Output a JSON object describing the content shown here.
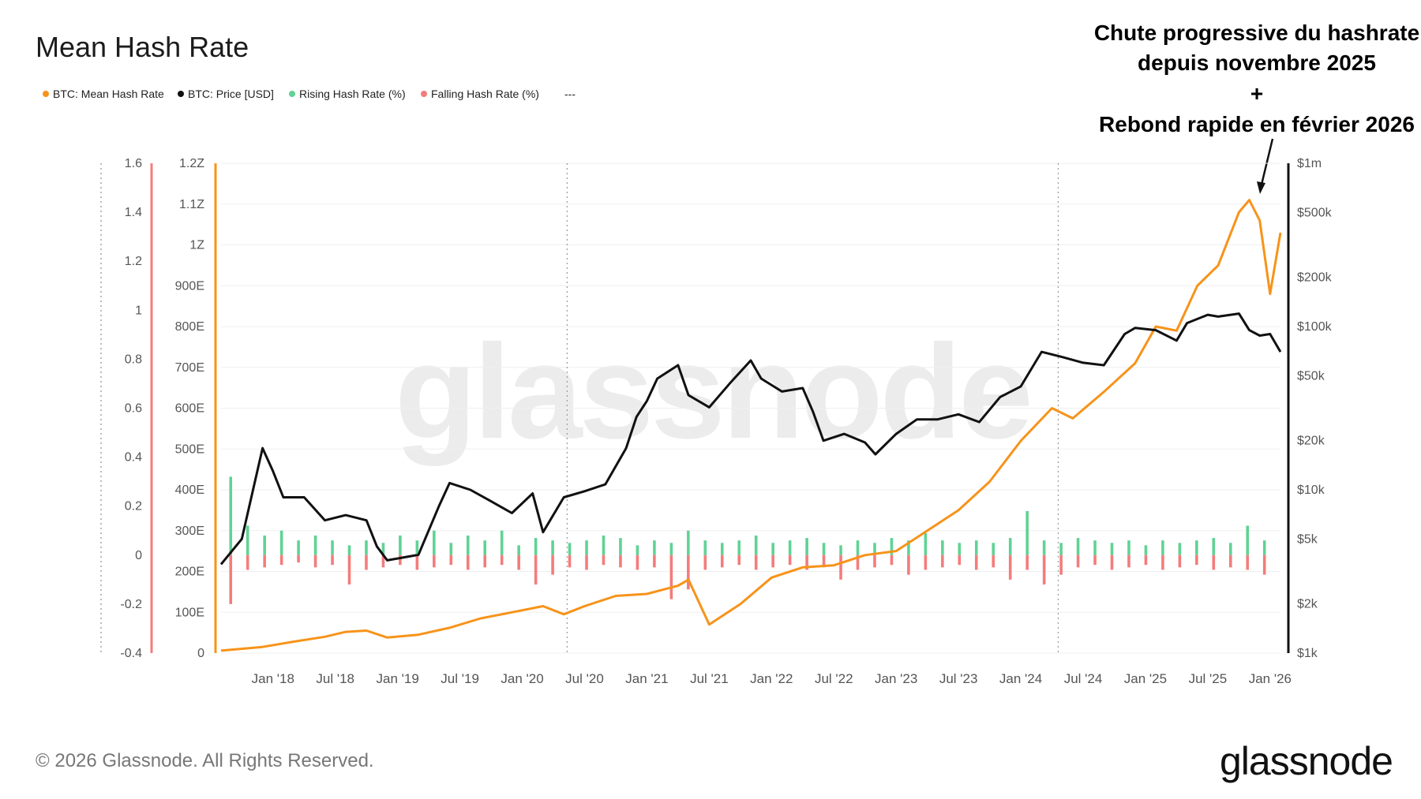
{
  "title": "Mean Hash Rate",
  "legend": [
    {
      "label": "BTC: Mean Hash Rate",
      "color": "#f7931a"
    },
    {
      "label": "BTC: Price [USD]",
      "color": "#111111"
    },
    {
      "label": "Rising Hash Rate (%)",
      "color": "#5fd394"
    },
    {
      "label": "Falling Hash Rate (%)",
      "color": "#f47c7c"
    },
    {
      "label": "---",
      "color": ""
    }
  ],
  "annotation": {
    "lines": [
      "Chute progressive du hashrate",
      "depuis novembre 2025",
      "+",
      "Rebond rapide en février 2026"
    ]
  },
  "footer": {
    "copyright": "© 2026 Glassnode. All Rights Reserved.",
    "logo": "glassnode",
    "watermark": "glassnode"
  },
  "chart_data": {
    "type": "line",
    "x_ticks": [
      "Jan '18",
      "Jul '18",
      "Jan '19",
      "Jul '19",
      "Jan '20",
      "Jul '20",
      "Jan '21",
      "Jul '21",
      "Jan '22",
      "Jul '22",
      "Jan '23",
      "Jul '23",
      "Jan '24",
      "Jul '24",
      "Jan '25",
      "Jul '25",
      "Jan '26"
    ],
    "x_range": [
      "2017-08",
      "2026-02"
    ],
    "axes": {
      "pct_axis": {
        "ticks": [
          "1.6",
          "1.4",
          "1.2",
          "1",
          "0.8",
          "0.6",
          "0.4",
          "0.2",
          "0",
          "-0.2",
          "-0.4"
        ],
        "range": [
          -0.4,
          1.6
        ],
        "color": "#f47c7c"
      },
      "hash_axis": {
        "ticks": [
          "1.2Z",
          "1.1Z",
          "1Z",
          "900E",
          "800E",
          "700E",
          "600E",
          "500E",
          "400E",
          "300E",
          "200E",
          "100E",
          "0"
        ],
        "range": [
          0,
          1200
        ],
        "unit": "EH/s",
        "color": "#f7931a"
      },
      "price_axis": {
        "ticks": [
          "$1m",
          "$500k",
          "$200k",
          "$100k",
          "$50k",
          "$20k",
          "$10k",
          "$5k",
          "$2k",
          "$1k"
        ],
        "tick_values": [
          1000000,
          500000,
          200000,
          100000,
          50000,
          20000,
          10000,
          5000,
          2000,
          1000
        ],
        "range": [
          1000,
          1000000
        ],
        "scale": "log",
        "color": "#111111"
      }
    },
    "series": [
      {
        "name": "BTC: Mean Hash Rate",
        "color": "#f7931a",
        "x": [
          "2017-08",
          "2017-12",
          "2018-03",
          "2018-06",
          "2018-08",
          "2018-10",
          "2018-12",
          "2019-03",
          "2019-06",
          "2019-09",
          "2019-12",
          "2020-03",
          "2020-05",
          "2020-07",
          "2020-10",
          "2021-01",
          "2021-04",
          "2021-05",
          "2021-07",
          "2021-10",
          "2022-01",
          "2022-04",
          "2022-07",
          "2022-10",
          "2023-01",
          "2023-04",
          "2023-07",
          "2023-10",
          "2024-01",
          "2024-04",
          "2024-06",
          "2024-09",
          "2024-12",
          "2025-02",
          "2025-04",
          "2025-06",
          "2025-08",
          "2025-10",
          "2025-11",
          "2025-12",
          "2026-01",
          "2026-02"
        ],
        "values": [
          6,
          15,
          28,
          40,
          52,
          55,
          38,
          45,
          62,
          85,
          100,
          115,
          95,
          115,
          140,
          145,
          165,
          180,
          70,
          120,
          185,
          210,
          215,
          240,
          250,
          300,
          350,
          420,
          520,
          600,
          575,
          640,
          710,
          800,
          790,
          900,
          950,
          1080,
          1110,
          1060,
          880,
          1030
        ]
      },
      {
        "name": "BTC: Price [USD]",
        "color": "#111111",
        "x": [
          "2017-08",
          "2017-10",
          "2017-12",
          "2018-01",
          "2018-02",
          "2018-04",
          "2018-06",
          "2018-08",
          "2018-10",
          "2018-11",
          "2018-12",
          "2019-03",
          "2019-05",
          "2019-06",
          "2019-08",
          "2019-10",
          "2019-12",
          "2020-02",
          "2020-03",
          "2020-05",
          "2020-07",
          "2020-09",
          "2020-11",
          "2020-12",
          "2021-01",
          "2021-02",
          "2021-04",
          "2021-05",
          "2021-07",
          "2021-09",
          "2021-11",
          "2021-12",
          "2022-02",
          "2022-04",
          "2022-05",
          "2022-06",
          "2022-08",
          "2022-10",
          "2022-11",
          "2023-01",
          "2023-03",
          "2023-05",
          "2023-07",
          "2023-09",
          "2023-11",
          "2024-01",
          "2024-03",
          "2024-05",
          "2024-07",
          "2024-09",
          "2024-11",
          "2024-12",
          "2025-02",
          "2025-04",
          "2025-05",
          "2025-07",
          "2025-08",
          "2025-10",
          "2025-11",
          "2025-12",
          "2026-01",
          "2026-02"
        ],
        "values": [
          3500,
          5000,
          18000,
          13000,
          9000,
          9000,
          6500,
          7000,
          6500,
          4500,
          3700,
          4000,
          8000,
          11000,
          10000,
          8500,
          7200,
          9500,
          5500,
          9000,
          9800,
          10800,
          18000,
          28000,
          35000,
          48000,
          58000,
          38000,
          32000,
          45000,
          62000,
          48000,
          40000,
          42000,
          30000,
          20000,
          22000,
          19500,
          16500,
          22000,
          27000,
          27000,
          29000,
          26000,
          37000,
          43000,
          70000,
          65000,
          60000,
          58000,
          90000,
          98000,
          95000,
          82000,
          105000,
          118000,
          115000,
          120000,
          95000,
          88000,
          90000,
          70000
        ]
      },
      {
        "name": "Rising Hash Rate (%)",
        "color": "#5fd394",
        "values": [
          0.32,
          0.12,
          0.08,
          0.1,
          0.06,
          0.08,
          0.06,
          0.04,
          0.06,
          0.05,
          0.08,
          0.06,
          0.1,
          0.05,
          0.08,
          0.06,
          0.1,
          0.04,
          0.07,
          0.06,
          0.05,
          0.06,
          0.08,
          0.07,
          0.04,
          0.06,
          0.05,
          0.1,
          0.06,
          0.05,
          0.06,
          0.08,
          0.05,
          0.06,
          0.07,
          0.05,
          0.04,
          0.06,
          0.05,
          0.07,
          0.06,
          0.09,
          0.06,
          0.05,
          0.06,
          0.05,
          0.07,
          0.18,
          0.06,
          0.05,
          0.07,
          0.06,
          0.05,
          0.06,
          0.04,
          0.06,
          0.05,
          0.06,
          0.07,
          0.05,
          0.12,
          0.06
        ]
      },
      {
        "name": "Falling Hash Rate (%)",
        "color": "#f47c7c",
        "values": [
          -0.2,
          -0.06,
          -0.05,
          -0.04,
          -0.03,
          -0.05,
          -0.04,
          -0.12,
          -0.06,
          -0.05,
          -0.04,
          -0.06,
          -0.05,
          -0.04,
          -0.06,
          -0.05,
          -0.04,
          -0.06,
          -0.12,
          -0.08,
          -0.05,
          -0.06,
          -0.04,
          -0.05,
          -0.06,
          -0.05,
          -0.18,
          -0.14,
          -0.06,
          -0.05,
          -0.04,
          -0.06,
          -0.05,
          -0.04,
          -0.06,
          -0.05,
          -0.1,
          -0.06,
          -0.05,
          -0.04,
          -0.08,
          -0.06,
          -0.05,
          -0.04,
          -0.06,
          -0.05,
          -0.1,
          -0.06,
          -0.12,
          -0.08,
          -0.05,
          -0.04,
          -0.06,
          -0.05,
          -0.04,
          -0.06,
          -0.05,
          -0.04,
          -0.06,
          -0.05,
          -0.06,
          -0.08
        ]
      }
    ],
    "legend_position": "top-left",
    "grid": true
  }
}
